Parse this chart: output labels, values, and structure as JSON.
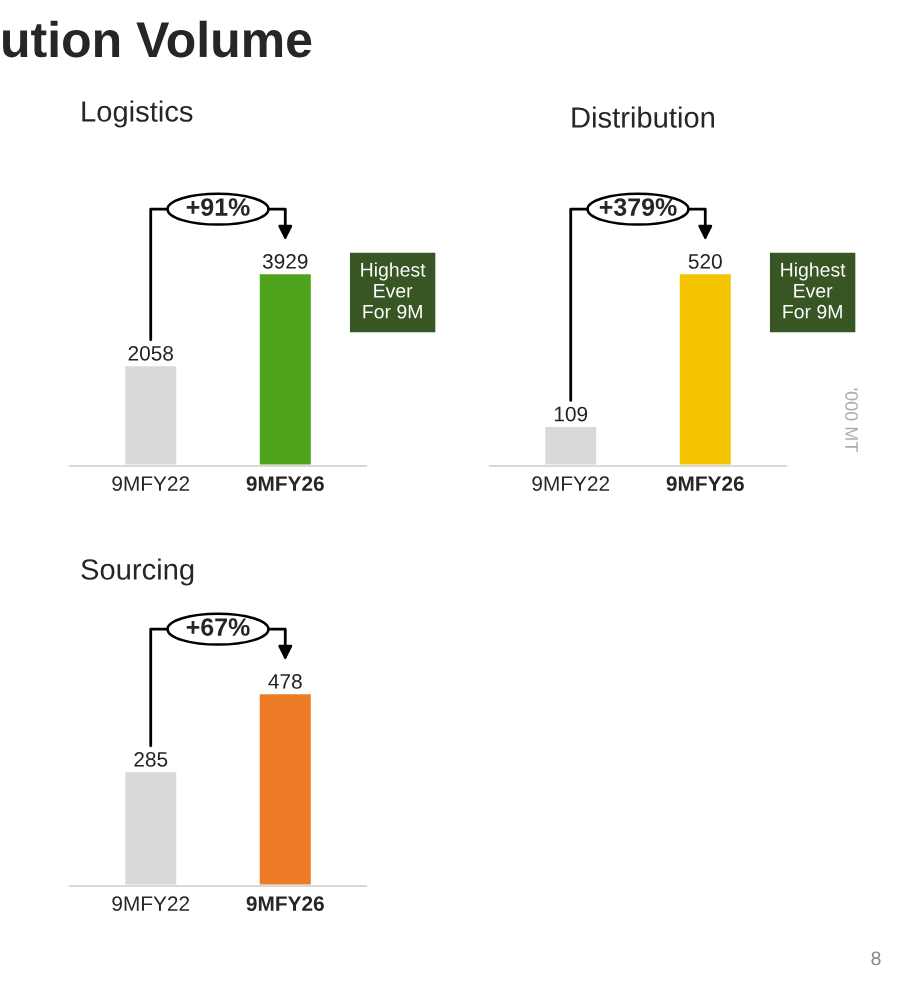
{
  "chart_data": [
    {
      "type": "bar",
      "title": "Logistics",
      "categories": [
        "9MFY22",
        "9MFY26"
      ],
      "values": [
        2058,
        3929
      ],
      "colors": [
        "#d9d9d9",
        "#4fa31c"
      ],
      "data_labels": true,
      "annotations": [
        "+91%",
        "Highest Ever For 9M",
        "ution Volume"
      ]
    },
    {
      "type": "bar",
      "title": "Distribution",
      "categories": [
        "9MFY22",
        "9MFY26"
      ],
      "values": [
        109,
        520
      ],
      "colors": [
        "#d9d9d9",
        "#f5c400"
      ],
      "data_labels": true,
      "annotations": [
        "+379%",
        "Highest Ever For 9M",
        "'000 MT"
      ]
    },
    {
      "type": "bar",
      "title": "Sourcing",
      "categories": [
        "9MFY22",
        "9MFY26"
      ],
      "values": [
        285,
        478
      ],
      "colors": [
        "#d9d9d9",
        "#ee7b27"
      ],
      "data_labels": true,
      "annotations": [
        "+67%",
        "8"
      ]
    }
  ]
}
